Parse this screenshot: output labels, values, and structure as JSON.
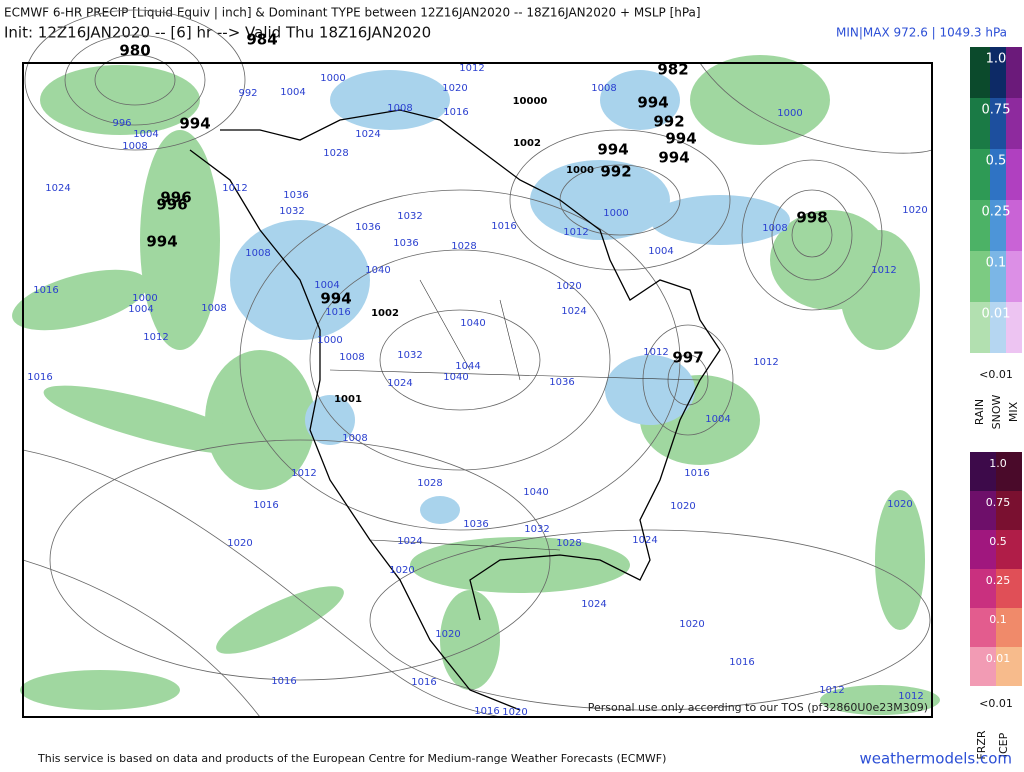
{
  "header": {
    "title": "ECMWF 6-HR PRECIP [Liquid Equiv | inch] & Dominant TYPE between 12Z16JAN2020 -- 18Z16JAN2020 + MSLP [hPa]",
    "init": "Init: 12Z16JAN2020 -- [6] hr --> Valid Thu 18Z16JAN2020",
    "minmax": "MIN|MAX 972.6 | 1049.3 hPa"
  },
  "map": {
    "isobar_labels": [
      1000,
      1004,
      1008,
      1012,
      1020,
      1016,
      1024,
      1028,
      1036,
      1032,
      1036,
      1032,
      1036,
      1028,
      1040,
      1004,
      1016,
      1000,
      1008,
      1032,
      1040,
      1044,
      1040,
      1020,
      1024,
      1036,
      1012,
      1004,
      1012,
      1000,
      1016,
      1008,
      1000,
      1020,
      1012,
      1012,
      1004,
      1016,
      1020,
      1020,
      1024,
      1024,
      1020,
      1016,
      1012,
      1012,
      1016,
      1016,
      1004,
      1000,
      1008,
      1012,
      1024,
      996,
      1004,
      1008,
      1008,
      1012,
      992,
      1012,
      1016,
      1020,
      1016,
      1020,
      1024,
      1028,
      1036,
      1040,
      1032,
      1028,
      1020,
      1016,
      1016,
      1020,
      1024,
      1008,
      1008
    ],
    "low_labels": [
      980,
      984,
      994,
      996,
      996,
      994,
      994,
      1002,
      1001,
      982,
      994,
      992,
      994,
      994,
      994,
      992,
      1000,
      1002,
      10000,
      998,
      997
    ],
    "watermark": "Personal use only according to our TOS (pf32860U0e23M309)"
  },
  "legend_rain": {
    "levels": [
      "1.0",
      "0.75",
      "0.5",
      "0.25",
      "0.1",
      "0.01"
    ],
    "below": "<0.01",
    "types": [
      "RAIN",
      "SNOW",
      "MIX"
    ]
  },
  "legend_ice": {
    "levels": [
      "1.0",
      "0.75",
      "0.5",
      "0.25",
      "0.1",
      "0.01"
    ],
    "below": "<0.01",
    "types": [
      "FRZR",
      "ICEP"
    ]
  },
  "footer": {
    "credit": "This service is based on data and products of the European Centre for Medium-range Weather Forecasts (ECMWF)",
    "site": "weathermodels.com"
  }
}
